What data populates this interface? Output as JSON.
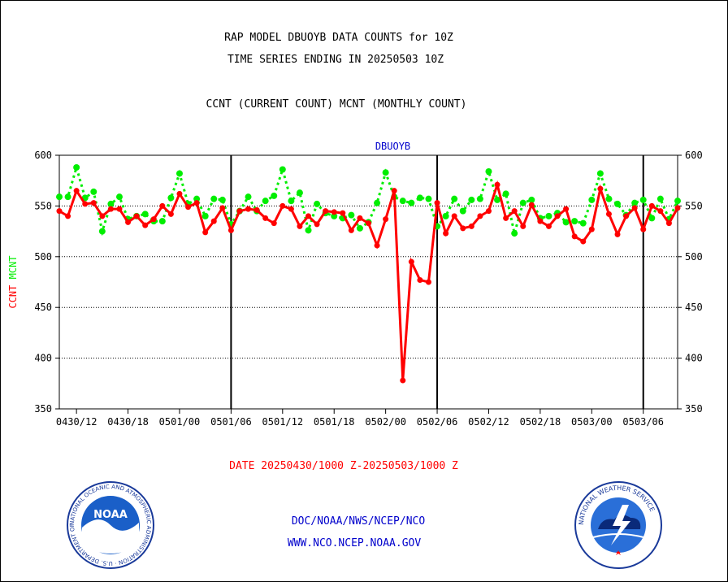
{
  "header": {
    "title_line1": "RAP MODEL DBUOYB DATA COUNTS for 10Z",
    "title_line2": "TIME SERIES ENDING IN 20250503 10Z",
    "subtitle": "CCNT (CURRENT COUNT) MCNT (MONTHLY COUNT)"
  },
  "footer": {
    "date_range": "DATE 20250430/1000 Z-20250503/1000 Z",
    "org_path": "DOC/NOAA/NWS/NCEP/NCO",
    "website": "WWW.NCO.NCEP.NOAA.GOV",
    "noaa_logo_text": "NOAA",
    "noaa_ring_text": "NATIONAL OCEANIC AND ATMOSPHERIC ADMINISTRATION · U.S. DEPARTMENT OF COMMERCE",
    "nws_ring_text": "NATIONAL WEATHER SERVICE"
  },
  "colors": {
    "ccnt": "#ff0000",
    "mcnt": "#00ee00",
    "title": "#000000",
    "panel_label": "#0000cc",
    "footer_red": "#ff0000",
    "footer_blue": "#0000cc"
  },
  "chart_data": {
    "type": "line",
    "title": "DBUOYB",
    "ylabel_series": [
      {
        "text": "CCNT",
        "color": "#ff0000"
      },
      {
        "text": "MCNT",
        "color": "#00ee00"
      }
    ],
    "ylim": [
      350,
      600
    ],
    "yticks": [
      350,
      400,
      450,
      500,
      550,
      600
    ],
    "gridlines_y": [
      400,
      450,
      500,
      550,
      600
    ],
    "xlim": [
      0,
      72
    ],
    "xtick_labels": [
      "0430/12",
      "0430/18",
      "0501/00",
      "0501/06",
      "0501/12",
      "0501/18",
      "0502/00",
      "0502/06",
      "0502/12",
      "0502/18",
      "0503/00",
      "0503/06"
    ],
    "xtick_values": [
      2,
      8,
      14,
      20,
      26,
      32,
      38,
      44,
      50,
      56,
      62,
      68
    ],
    "day_boundaries": [
      20,
      44,
      68
    ],
    "x": [
      0,
      1,
      2,
      3,
      4,
      5,
      6,
      7,
      8,
      9,
      10,
      11,
      12,
      13,
      14,
      15,
      16,
      17,
      18,
      19,
      20,
      21,
      22,
      23,
      24,
      25,
      26,
      27,
      28,
      29,
      30,
      31,
      32,
      33,
      34,
      35,
      36,
      37,
      38,
      39,
      40,
      41,
      42,
      43,
      44,
      45,
      46,
      47,
      48,
      49,
      50,
      51,
      52,
      53,
      54,
      55,
      56,
      57,
      58,
      59,
      60,
      61,
      62,
      63,
      64,
      65,
      66,
      67,
      68,
      69,
      70,
      71,
      72
    ],
    "series": [
      {
        "name": "CCNT",
        "style": "solid",
        "values": [
          545,
          540,
          565,
          552,
          553,
          540,
          547,
          547,
          534,
          540,
          531,
          537,
          550,
          542,
          562,
          549,
          553,
          524,
          535,
          548,
          526,
          545,
          547,
          546,
          538,
          533,
          550,
          547,
          530,
          540,
          532,
          545,
          544,
          543,
          526,
          538,
          533,
          511,
          537,
          565,
          378,
          495,
          477,
          475,
          553,
          523,
          540,
          528,
          530,
          540,
          545,
          571,
          538,
          545,
          530,
          551,
          535,
          530,
          540,
          547,
          520,
          515,
          527,
          567,
          542,
          522,
          540,
          548,
          527,
          550,
          545,
          533,
          548
        ]
      },
      {
        "name": "MCNT",
        "style": "dotted",
        "values": [
          559,
          559,
          588,
          558,
          564,
          525,
          552,
          559,
          537,
          540,
          542,
          535,
          535,
          558,
          582,
          552,
          557,
          540,
          557,
          556,
          532,
          545,
          559,
          545,
          555,
          560,
          586,
          555,
          563,
          526,
          552,
          543,
          540,
          538,
          541,
          528,
          534,
          553,
          583,
          559,
          555,
          553,
          558,
          557,
          530,
          540,
          557,
          545,
          556,
          557,
          584,
          556,
          562,
          523,
          553,
          556,
          538,
          540,
          543,
          534,
          535,
          533,
          556,
          582,
          557,
          552,
          541,
          553,
          556,
          538,
          557,
          537,
          555
        ]
      }
    ]
  }
}
